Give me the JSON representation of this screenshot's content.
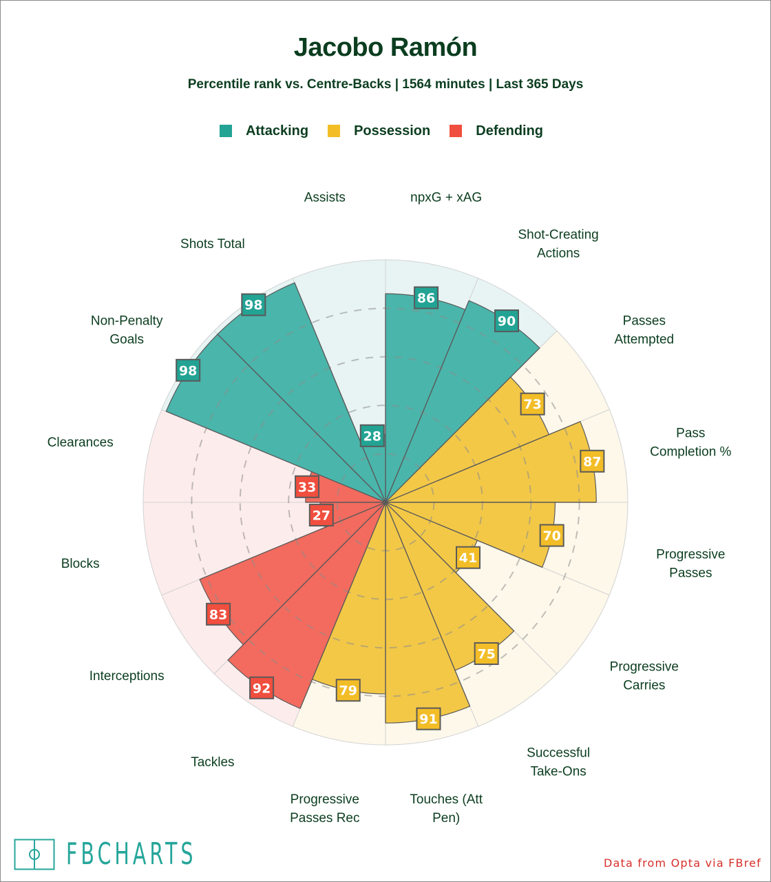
{
  "title": "Jacobo Ramón",
  "subtitle": "Percentile rank vs. Centre-Backs | 1564 minutes | Last 365 Days",
  "legend": [
    {
      "label": "Attacking",
      "color": "#22a394"
    },
    {
      "label": "Possession",
      "color": "#f2bd27"
    },
    {
      "label": "Defending",
      "color": "#f04e3e"
    }
  ],
  "colors": {
    "Attacking": {
      "badge": "#22a394",
      "fill": "#4ab5ab",
      "bg": "#e8f4f4"
    },
    "Possession": {
      "badge": "#f2bd27",
      "fill": "#f3c847",
      "bg": "#fdf8ea"
    },
    "Defending": {
      "badge": "#f04e3e",
      "fill": "#f26b5e",
      "bg": "#fdecec"
    },
    "text": "#0b3d1f",
    "badge_stroke": "#5a5a5a"
  },
  "chart_data": {
    "type": "polar-bar",
    "title": "Jacobo Ramón",
    "subtitle": "Percentile rank vs. Centre-Backs | 1564 minutes | Last 365 Days",
    "range": [
      0,
      100
    ],
    "gridlines": [
      20,
      40,
      60,
      80
    ],
    "legend_position": "top",
    "direction": "clockwise from top",
    "categories": [
      {
        "label": "npxG + xAG",
        "lines": [
          "npxG + xAG"
        ],
        "value": 86,
        "group": "Attacking"
      },
      {
        "label": "Shot-Creating Actions",
        "lines": [
          "Shot-Creating",
          "Actions"
        ],
        "value": 90,
        "group": "Attacking"
      },
      {
        "label": "Passes Attempted",
        "lines": [
          "Passes",
          "Attempted"
        ],
        "value": 73,
        "group": "Possession"
      },
      {
        "label": "Pass Completion %",
        "lines": [
          "Pass",
          "Completion %"
        ],
        "value": 87,
        "group": "Possession"
      },
      {
        "label": "Progressive Passes",
        "lines": [
          "Progressive",
          "Passes"
        ],
        "value": 70,
        "group": "Possession"
      },
      {
        "label": "Progressive Carries",
        "lines": [
          "Progressive",
          "Carries"
        ],
        "value": 41,
        "group": "Possession"
      },
      {
        "label": "Successful Take-Ons",
        "lines": [
          "Successful",
          "Take-Ons"
        ],
        "value": 75,
        "group": "Possession"
      },
      {
        "label": "Touches (Att Pen)",
        "lines": [
          "Touches (Att",
          "Pen)"
        ],
        "value": 91,
        "group": "Possession"
      },
      {
        "label": "Progressive Passes Rec",
        "lines": [
          "Progressive",
          "Passes Rec"
        ],
        "value": 79,
        "group": "Possession"
      },
      {
        "label": "Tackles",
        "lines": [
          "Tackles"
        ],
        "value": 92,
        "group": "Defending"
      },
      {
        "label": "Interceptions",
        "lines": [
          "Interceptions"
        ],
        "value": 83,
        "group": "Defending"
      },
      {
        "label": "Blocks",
        "lines": [
          "Blocks"
        ],
        "value": 27,
        "group": "Defending"
      },
      {
        "label": "Clearances",
        "lines": [
          "Clearances"
        ],
        "value": 33,
        "group": "Defending"
      },
      {
        "label": "Non-Penalty Goals",
        "lines": [
          "Non-Penalty",
          "Goals"
        ],
        "value": 98,
        "group": "Attacking"
      },
      {
        "label": "Shots Total",
        "lines": [
          "Shots Total"
        ],
        "value": 98,
        "group": "Attacking"
      },
      {
        "label": "Assists",
        "lines": [
          "Assists"
        ],
        "value": 28,
        "group": "Attacking"
      }
    ]
  },
  "footer": {
    "logo": "FBCHARTS",
    "credit": "Data from Opta via FBref"
  }
}
